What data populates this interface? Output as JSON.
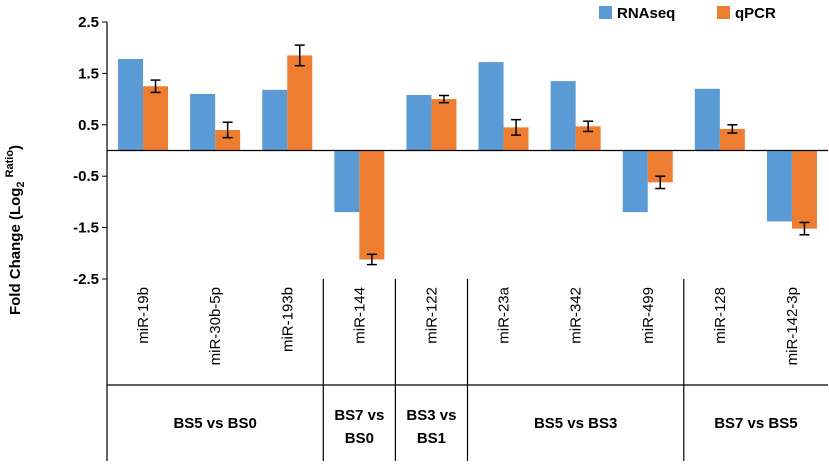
{
  "chart_data": {
    "type": "bar",
    "title": "",
    "ylabel": {
      "prefix": "Fold Change  (Log",
      "subscript": "2",
      "superscript": "Ratio",
      "suffix": ")"
    },
    "ylim": [
      -2.5,
      2.5
    ],
    "yticks": [
      "2.5",
      "1.5",
      "0.5",
      "-0.5",
      "-1.5",
      "-2.5"
    ],
    "ytick_values": [
      2.5,
      1.5,
      0.5,
      -0.5,
      -1.5,
      -2.5
    ],
    "categories": [
      "miR-19b",
      "miR-30b-5p",
      "miR-193b",
      "miR-144",
      "miR-122",
      "miR-23a",
      "miR-342",
      "miR-499",
      "miR-128",
      "miR-142-3p"
    ],
    "series": [
      {
        "name": "RNAseq",
        "color": "#5B9BD5",
        "values": [
          1.78,
          1.1,
          1.18,
          -1.2,
          1.08,
          1.72,
          1.35,
          -1.2,
          1.2,
          -1.38
        ],
        "errors": null
      },
      {
        "name": "qPCR",
        "color": "#ED7D31",
        "values": [
          1.25,
          0.4,
          1.85,
          -2.12,
          1.0,
          0.45,
          0.47,
          -0.62,
          0.42,
          -1.52
        ],
        "errors": [
          0.12,
          0.15,
          0.2,
          0.1,
          0.07,
          0.15,
          0.1,
          0.12,
          0.08,
          0.12
        ]
      }
    ],
    "groups": [
      {
        "label_lines": [
          "BS5 vs BS0"
        ],
        "start": 0,
        "end": 2
      },
      {
        "label_lines": [
          "BS7 vs",
          "BS0"
        ],
        "start": 3,
        "end": 3
      },
      {
        "label_lines": [
          "BS3 vs",
          "BS1"
        ],
        "start": 4,
        "end": 4
      },
      {
        "label_lines": [
          "BS5 vs BS3"
        ],
        "start": 5,
        "end": 7
      },
      {
        "label_lines": [
          "BS7 vs BS5"
        ],
        "start": 8,
        "end": 9
      }
    ],
    "legend": {
      "position": "top-right"
    },
    "grid": false
  }
}
